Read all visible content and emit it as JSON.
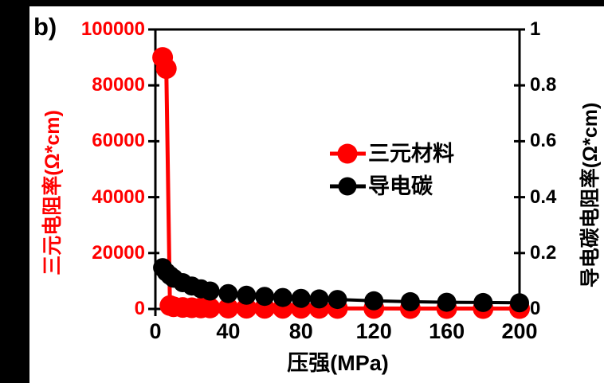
{
  "panel_label": "b)",
  "colors": {
    "series_red": "#FF0000",
    "series_black": "#000000",
    "frame": "#000000",
    "background": "#FFFFFF"
  },
  "chart_data": {
    "type": "line",
    "x": [
      4,
      6,
      8,
      10,
      15,
      20,
      25,
      30,
      40,
      50,
      60,
      70,
      80,
      90,
      100,
      120,
      140,
      160,
      180,
      200
    ],
    "series": [
      {
        "name": "三元材料",
        "axis": "left",
        "color": "#FF0000",
        "values": [
          90000,
          86000,
          1200,
          800,
          550,
          430,
          370,
          330,
          280,
          250,
          230,
          215,
          200,
          190,
          180,
          165,
          155,
          145,
          140,
          135
        ]
      },
      {
        "name": "导电碳",
        "axis": "right",
        "color": "#000000",
        "values": [
          0.148,
          0.132,
          0.12,
          0.11,
          0.094,
          0.082,
          0.072,
          0.064,
          0.055,
          0.049,
          0.045,
          0.041,
          0.038,
          0.036,
          0.034,
          0.029,
          0.026,
          0.024,
          0.023,
          0.022
        ]
      }
    ],
    "xlabel": "压强(MPa)",
    "ylabel_left": "三元电阻率(Ω*cm)",
    "ylabel_right": "导电碳电阻率(Ω*cm)",
    "xlim": [
      0,
      200
    ],
    "ylim_left": [
      0,
      100000
    ],
    "ylim_right": [
      0,
      1
    ],
    "x_tick_labels": [
      "0",
      "40",
      "80",
      "120",
      "160",
      "200"
    ],
    "y_left_tick_labels": [
      "0",
      "20000",
      "40000",
      "60000",
      "80000",
      "100000"
    ],
    "y_right_tick_labels": [
      "0",
      "0.2",
      "0.4",
      "0.6",
      "0.8",
      "1"
    ],
    "grid": false,
    "legend_position": "inside-center-right",
    "marker": "circle"
  },
  "legend": {
    "items": [
      {
        "label": "三元材料",
        "color": "#FF0000"
      },
      {
        "label": "导电碳",
        "color": "#000000"
      }
    ]
  }
}
